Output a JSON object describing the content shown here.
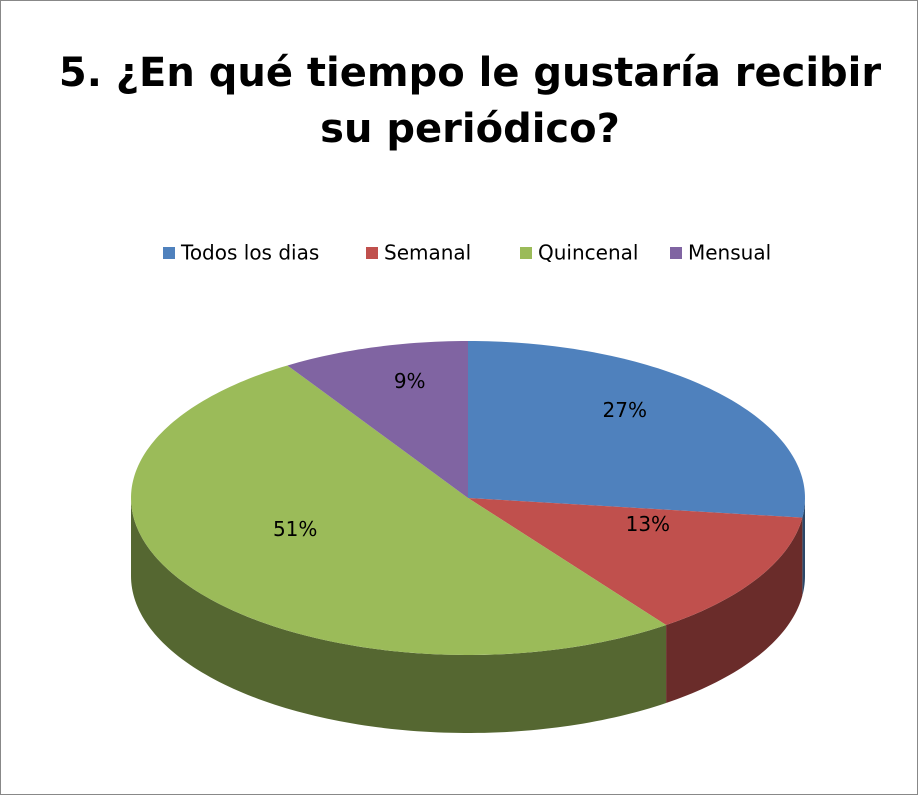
{
  "chart_data": {
    "type": "pie",
    "title": "5. ¿En qué tiempo le gustaría recibir su periódico?",
    "categories": [
      "Todos los dias",
      "Semanal",
      "Quincenal",
      "Mensual"
    ],
    "values": [
      27,
      13,
      51,
      9
    ],
    "value_labels": [
      "27%",
      "13%",
      "51%",
      "9%"
    ],
    "colors": [
      "#4f81bd",
      "#c0504d",
      "#9bbb59",
      "#8064a2"
    ],
    "legend": "top"
  }
}
